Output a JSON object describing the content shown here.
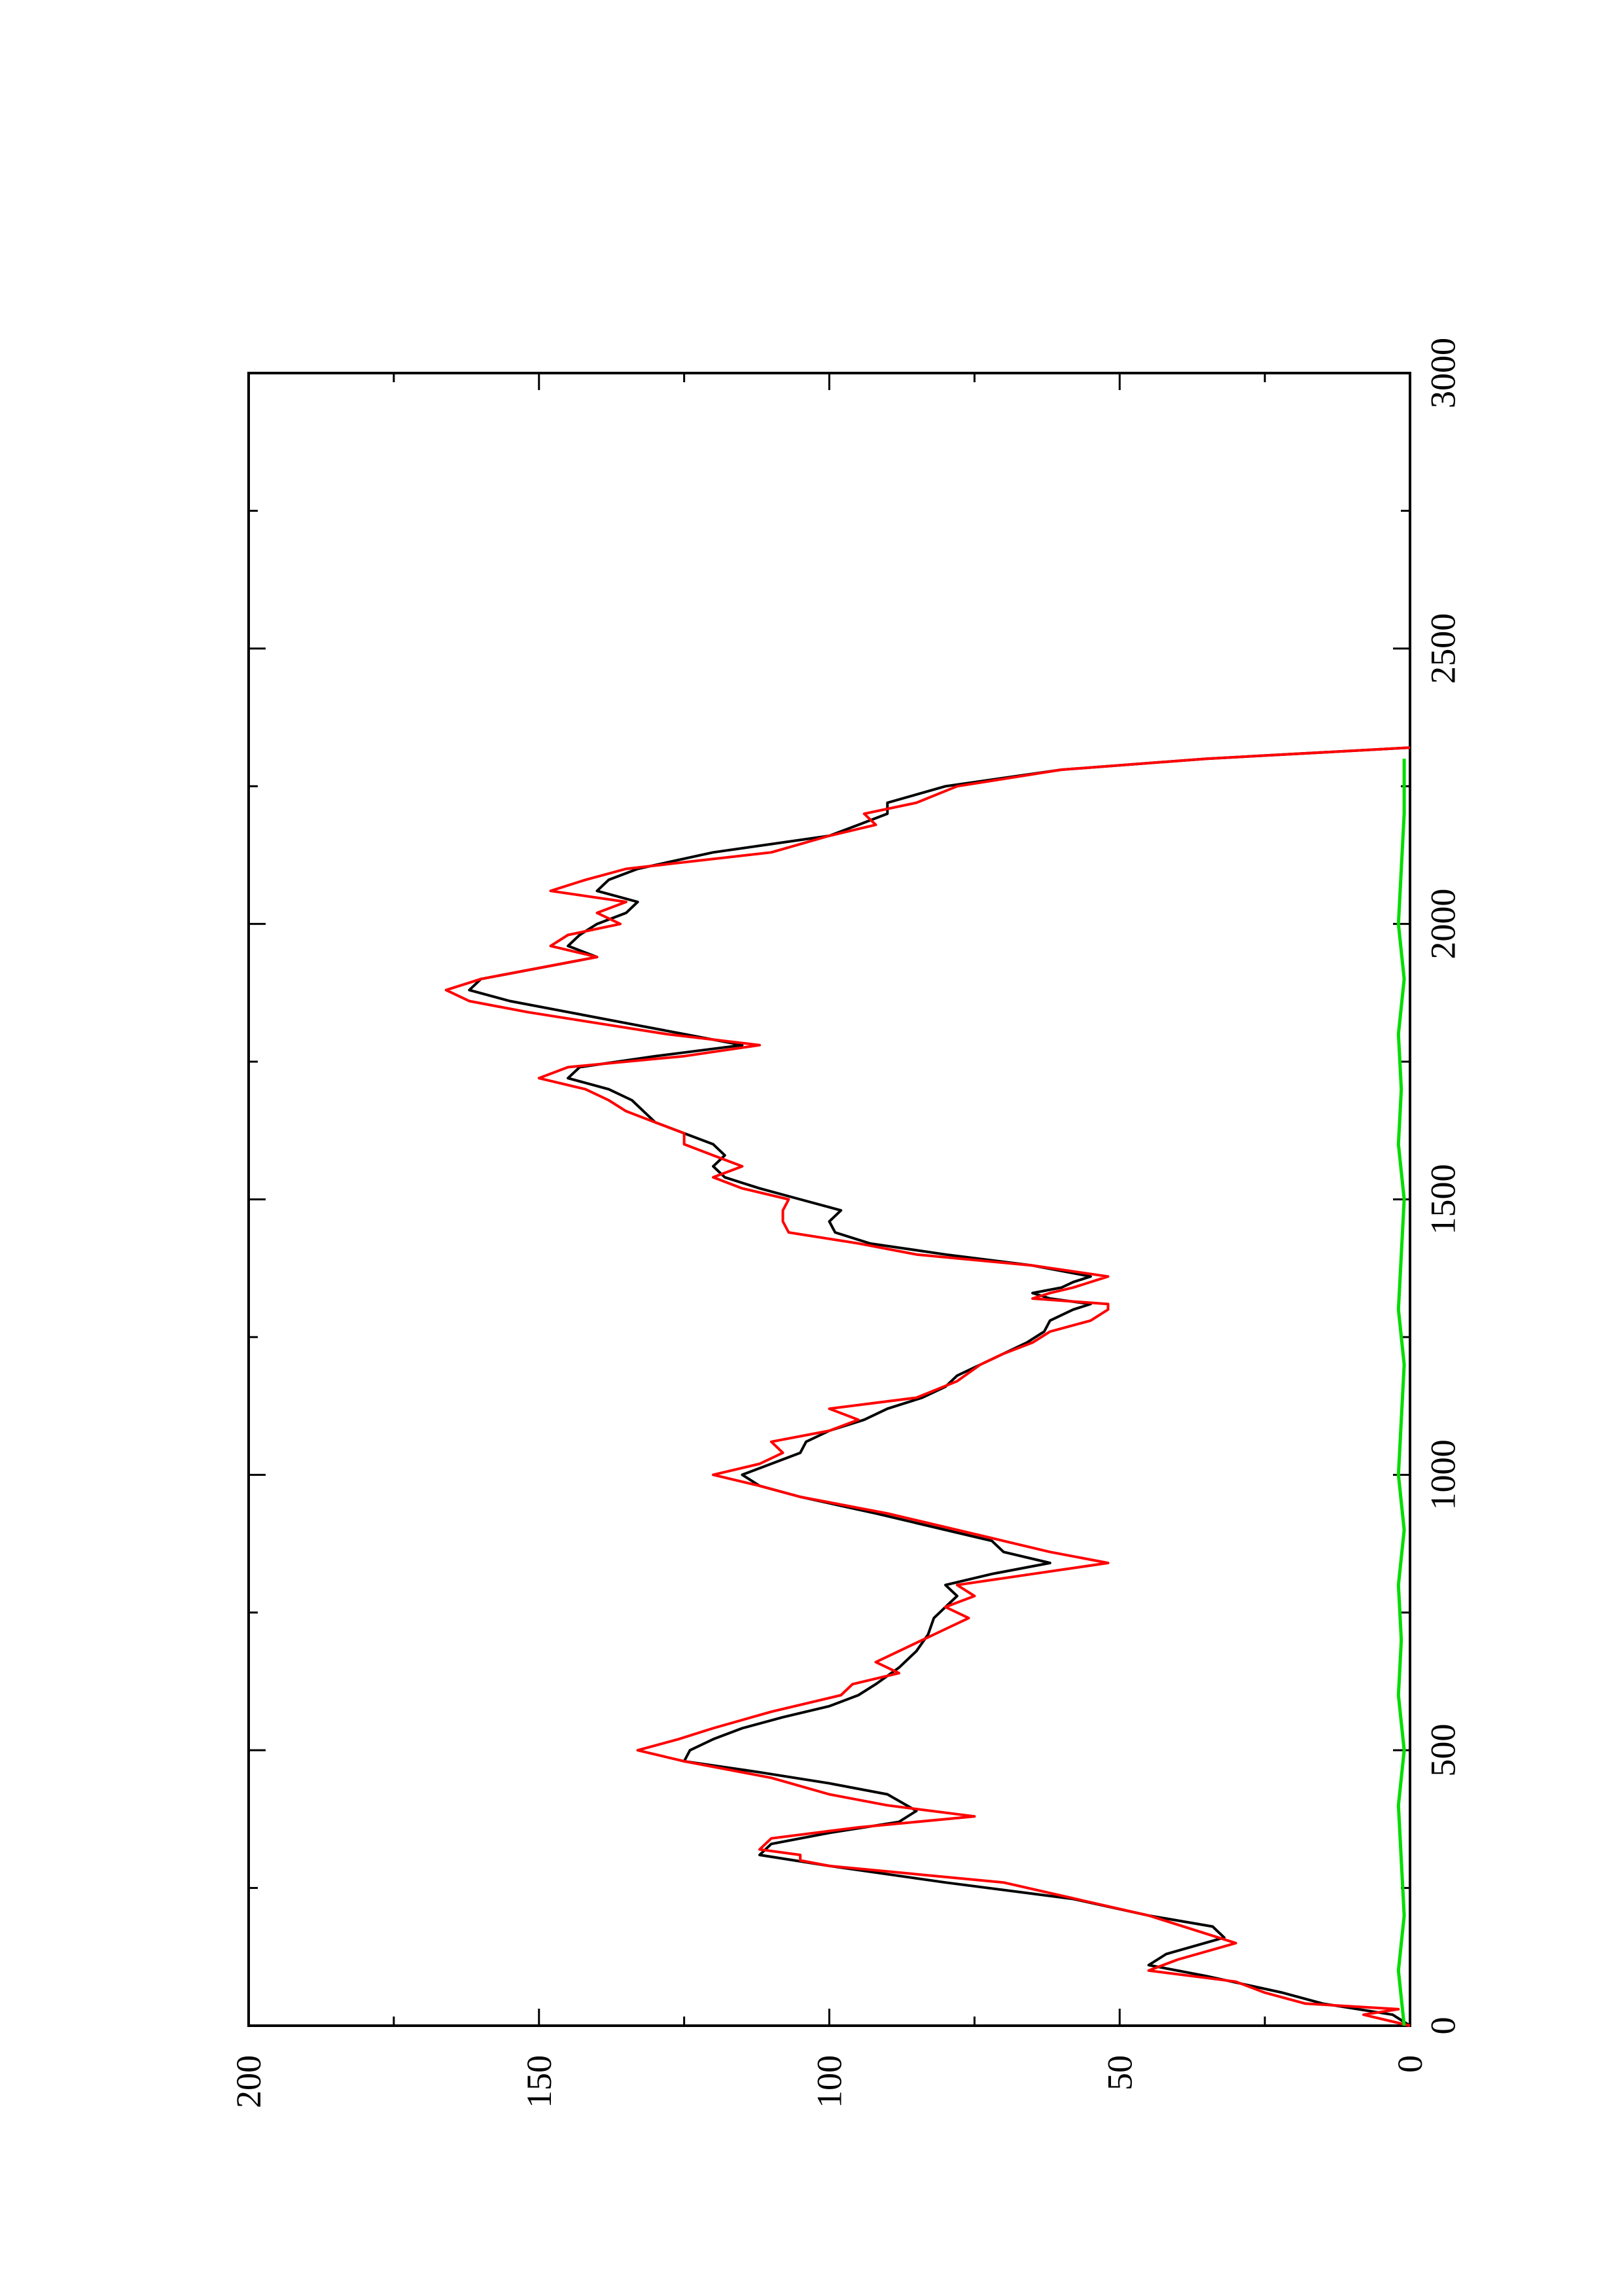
{
  "chart_data": {
    "type": "line",
    "title": "",
    "xlabel": "",
    "ylabel": "",
    "orientation": "rotated 90 degrees counter-clockwise (x axis runs bottom-to-top, y axis runs left-to-right)",
    "xlim": [
      0,
      3000
    ],
    "ylim": [
      0,
      200
    ],
    "x_ticks": [
      "0",
      "500",
      "1000",
      "1500",
      "2000",
      "2500",
      "3000"
    ],
    "y_ticks": [
      "0",
      "50",
      "100",
      "150",
      "200"
    ],
    "x_minor_step": 250,
    "y_minor_step": 25,
    "grid": false,
    "legend": "none",
    "series": [
      {
        "color": "#000000",
        "points": [
          [
            0,
            0
          ],
          [
            20,
            3
          ],
          [
            40,
            15
          ],
          [
            60,
            22
          ],
          [
            90,
            35
          ],
          [
            110,
            45
          ],
          [
            130,
            42
          ],
          [
            160,
            32
          ],
          [
            180,
            34
          ],
          [
            200,
            45
          ],
          [
            230,
            58
          ],
          [
            260,
            80
          ],
          [
            290,
            100
          ],
          [
            310,
            112
          ],
          [
            330,
            110
          ],
          [
            350,
            100
          ],
          [
            370,
            88
          ],
          [
            390,
            85
          ],
          [
            420,
            90
          ],
          [
            440,
            100
          ],
          [
            460,
            112
          ],
          [
            480,
            125
          ],
          [
            500,
            124
          ],
          [
            520,
            120
          ],
          [
            540,
            115
          ],
          [
            560,
            108
          ],
          [
            580,
            100
          ],
          [
            600,
            95
          ],
          [
            620,
            92
          ],
          [
            650,
            88
          ],
          [
            680,
            85
          ],
          [
            710,
            83
          ],
          [
            740,
            82
          ],
          [
            760,
            80
          ],
          [
            780,
            78
          ],
          [
            800,
            80
          ],
          [
            820,
            72
          ],
          [
            840,
            62
          ],
          [
            860,
            70
          ],
          [
            880,
            72
          ],
          [
            900,
            80
          ],
          [
            930,
            92
          ],
          [
            960,
            105
          ],
          [
            980,
            112
          ],
          [
            1000,
            115
          ],
          [
            1020,
            110
          ],
          [
            1040,
            105
          ],
          [
            1060,
            104
          ],
          [
            1080,
            100
          ],
          [
            1100,
            94
          ],
          [
            1120,
            90
          ],
          [
            1140,
            84
          ],
          [
            1160,
            80
          ],
          [
            1180,
            78
          ],
          [
            1200,
            74
          ],
          [
            1220,
            70
          ],
          [
            1240,
            66
          ],
          [
            1260,
            63
          ],
          [
            1280,
            62
          ],
          [
            1300,
            58
          ],
          [
            1310,
            55
          ],
          [
            1320,
            62
          ],
          [
            1330,
            65
          ],
          [
            1340,
            60
          ],
          [
            1350,
            58
          ],
          [
            1360,
            55
          ],
          [
            1380,
            65
          ],
          [
            1400,
            80
          ],
          [
            1420,
            93
          ],
          [
            1440,
            99
          ],
          [
            1460,
            100
          ],
          [
            1480,
            98
          ],
          [
            1500,
            105
          ],
          [
            1520,
            112
          ],
          [
            1540,
            118
          ],
          [
            1560,
            120
          ],
          [
            1580,
            118
          ],
          [
            1600,
            120
          ],
          [
            1620,
            125
          ],
          [
            1640,
            130
          ],
          [
            1660,
            132
          ],
          [
            1680,
            134
          ],
          [
            1700,
            138
          ],
          [
            1720,
            145
          ],
          [
            1740,
            143
          ],
          [
            1760,
            130
          ],
          [
            1780,
            115
          ],
          [
            1800,
            125
          ],
          [
            1820,
            135
          ],
          [
            1840,
            145
          ],
          [
            1860,
            155
          ],
          [
            1880,
            162
          ],
          [
            1900,
            160
          ],
          [
            1920,
            150
          ],
          [
            1940,
            140
          ],
          [
            1960,
            145
          ],
          [
            1980,
            143
          ],
          [
            2000,
            140
          ],
          [
            2020,
            135
          ],
          [
            2040,
            133
          ],
          [
            2060,
            140
          ],
          [
            2080,
            138
          ],
          [
            2100,
            133
          ],
          [
            2130,
            120
          ],
          [
            2160,
            100
          ],
          [
            2180,
            95
          ],
          [
            2200,
            90
          ],
          [
            2220,
            90
          ],
          [
            2250,
            80
          ],
          [
            2280,
            60
          ],
          [
            2300,
            35
          ],
          [
            2320,
            0
          ]
        ]
      },
      {
        "color": "#ff0000",
        "points": [
          [
            0,
            0
          ],
          [
            20,
            8
          ],
          [
            30,
            2
          ],
          [
            40,
            18
          ],
          [
            60,
            25
          ],
          [
            80,
            30
          ],
          [
            100,
            45
          ],
          [
            120,
            40
          ],
          [
            150,
            30
          ],
          [
            200,
            45
          ],
          [
            260,
            70
          ],
          [
            290,
            100
          ],
          [
            300,
            105
          ],
          [
            310,
            105
          ],
          [
            320,
            112
          ],
          [
            340,
            110
          ],
          [
            360,
            95
          ],
          [
            380,
            75
          ],
          [
            400,
            90
          ],
          [
            420,
            100
          ],
          [
            450,
            110
          ],
          [
            480,
            125
          ],
          [
            500,
            133
          ],
          [
            520,
            126
          ],
          [
            540,
            120
          ],
          [
            570,
            110
          ],
          [
            600,
            98
          ],
          [
            620,
            96
          ],
          [
            640,
            88
          ],
          [
            660,
            92
          ],
          [
            680,
            88
          ],
          [
            700,
            84
          ],
          [
            720,
            80
          ],
          [
            740,
            76
          ],
          [
            760,
            80
          ],
          [
            780,
            75
          ],
          [
            800,
            78
          ],
          [
            820,
            65
          ],
          [
            840,
            52
          ],
          [
            860,
            62
          ],
          [
            880,
            70
          ],
          [
            900,
            78
          ],
          [
            930,
            90
          ],
          [
            960,
            105
          ],
          [
            980,
            112
          ],
          [
            1000,
            120
          ],
          [
            1020,
            112
          ],
          [
            1040,
            108
          ],
          [
            1060,
            110
          ],
          [
            1080,
            100
          ],
          [
            1100,
            95
          ],
          [
            1120,
            100
          ],
          [
            1140,
            85
          ],
          [
            1170,
            78
          ],
          [
            1200,
            74
          ],
          [
            1220,
            70
          ],
          [
            1240,
            65
          ],
          [
            1260,
            62
          ],
          [
            1280,
            55
          ],
          [
            1300,
            52
          ],
          [
            1310,
            52
          ],
          [
            1320,
            65
          ],
          [
            1330,
            62
          ],
          [
            1340,
            58
          ],
          [
            1360,
            52
          ],
          [
            1380,
            65
          ],
          [
            1400,
            85
          ],
          [
            1420,
            95
          ],
          [
            1440,
            107
          ],
          [
            1460,
            108
          ],
          [
            1480,
            108
          ],
          [
            1500,
            107
          ],
          [
            1520,
            115
          ],
          [
            1540,
            120
          ],
          [
            1560,
            115
          ],
          [
            1580,
            120
          ],
          [
            1600,
            125
          ],
          [
            1620,
            125
          ],
          [
            1640,
            130
          ],
          [
            1660,
            135
          ],
          [
            1680,
            138
          ],
          [
            1700,
            142
          ],
          [
            1720,
            150
          ],
          [
            1740,
            145
          ],
          [
            1760,
            125
          ],
          [
            1780,
            112
          ],
          [
            1800,
            128
          ],
          [
            1820,
            140
          ],
          [
            1840,
            152
          ],
          [
            1860,
            162
          ],
          [
            1880,
            166
          ],
          [
            1900,
            160
          ],
          [
            1920,
            150
          ],
          [
            1940,
            140
          ],
          [
            1960,
            148
          ],
          [
            1980,
            145
          ],
          [
            2000,
            136
          ],
          [
            2020,
            140
          ],
          [
            2040,
            135
          ],
          [
            2060,
            148
          ],
          [
            2080,
            142
          ],
          [
            2100,
            135
          ],
          [
            2130,
            110
          ],
          [
            2160,
            100
          ],
          [
            2180,
            92
          ],
          [
            2200,
            94
          ],
          [
            2220,
            85
          ],
          [
            2250,
            78
          ],
          [
            2280,
            60
          ],
          [
            2300,
            35
          ],
          [
            2320,
            0
          ]
        ]
      },
      {
        "color": "#00dd00",
        "points": [
          [
            0,
            1
          ],
          [
            100,
            2
          ],
          [
            200,
            1
          ],
          [
            300,
            1.5
          ],
          [
            400,
            2
          ],
          [
            500,
            1
          ],
          [
            600,
            2
          ],
          [
            700,
            1.5
          ],
          [
            800,
            2
          ],
          [
            900,
            1
          ],
          [
            1000,
            2
          ],
          [
            1100,
            1.5
          ],
          [
            1200,
            1
          ],
          [
            1300,
            2
          ],
          [
            1400,
            1.5
          ],
          [
            1500,
            1
          ],
          [
            1600,
            2
          ],
          [
            1700,
            1.5
          ],
          [
            1800,
            2
          ],
          [
            1900,
            1
          ],
          [
            2000,
            2
          ],
          [
            2100,
            1.5
          ],
          [
            2200,
            1
          ],
          [
            2300,
            1
          ]
        ]
      }
    ]
  }
}
